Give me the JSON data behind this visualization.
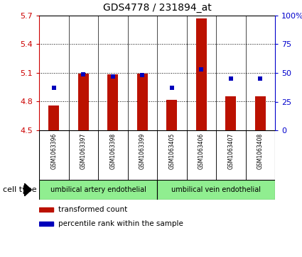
{
  "title": "GDS4778 / 231894_at",
  "samples": [
    "GSM1063396",
    "GSM1063397",
    "GSM1063398",
    "GSM1063399",
    "GSM1063405",
    "GSM1063406",
    "GSM1063407",
    "GSM1063408"
  ],
  "transformed_counts": [
    4.76,
    5.095,
    5.085,
    5.095,
    4.815,
    5.67,
    4.855,
    4.855
  ],
  "percentile_ranks": [
    37,
    49,
    47,
    48,
    37,
    53,
    45,
    45
  ],
  "ylim_left": [
    4.5,
    5.7
  ],
  "yticks_left": [
    4.5,
    4.8,
    5.1,
    5.4,
    5.7
  ],
  "ylim_right": [
    0,
    100
  ],
  "yticks_right": [
    0,
    25,
    50,
    75,
    100
  ],
  "ytick_labels_right": [
    "0",
    "25",
    "50",
    "75",
    "100%"
  ],
  "bar_color": "#bb1100",
  "dot_color": "#0000bb",
  "bar_width": 0.35,
  "cell_types": [
    {
      "label": "umbilical artery endothelial",
      "indices": [
        0,
        1,
        2,
        3
      ],
      "color": "#90ee90"
    },
    {
      "label": "umbilical vein endothelial",
      "indices": [
        4,
        5,
        6,
        7
      ],
      "color": "#90ee90"
    }
  ],
  "legend_bar_label": "transformed count",
  "legend_dot_label": "percentile rank within the sample",
  "background_color": "#ffffff",
  "plot_bg_color": "#ffffff",
  "tick_label_color_left": "#cc0000",
  "tick_label_color_right": "#0000cc",
  "label_area_color": "#c8c8c8",
  "cell_type_label": "cell type",
  "grid_yticks": [
    4.8,
    5.1,
    5.4
  ]
}
